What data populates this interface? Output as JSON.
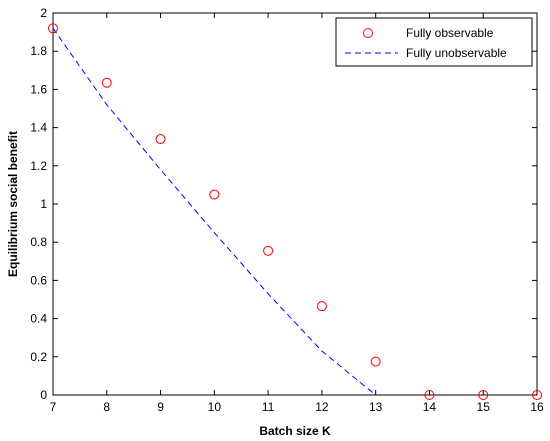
{
  "chart_data": {
    "type": "scatter",
    "xlabel": "Batch size K",
    "ylabel": "Equilibrium social benefit",
    "xlim": [
      7,
      16
    ],
    "ylim": [
      0,
      2
    ],
    "xticks": [
      "7",
      "8",
      "9",
      "10",
      "11",
      "12",
      "13",
      "14",
      "15",
      "16"
    ],
    "yticks": [
      "0",
      "0.2",
      "0.4",
      "0.6",
      "0.8",
      "1",
      "1.2",
      "1.4",
      "1.6",
      "1.8",
      "2"
    ],
    "grid": false,
    "legend_position": "top-right",
    "series": [
      {
        "name": "Fully observable",
        "style": "marker-circle",
        "color": "#ff0000",
        "x": [
          7,
          8,
          9,
          10,
          11,
          12,
          13,
          14,
          15,
          16
        ],
        "y": [
          1.92,
          1.635,
          1.34,
          1.05,
          0.755,
          0.465,
          0.175,
          0,
          0,
          0
        ]
      },
      {
        "name": "Fully unobservable",
        "style": "dashed-line",
        "color": "#0000ff",
        "x": [
          7,
          8,
          9,
          10,
          11,
          12,
          13
        ],
        "y": [
          1.92,
          1.52,
          1.18,
          0.85,
          0.53,
          0.23,
          0
        ]
      }
    ]
  }
}
